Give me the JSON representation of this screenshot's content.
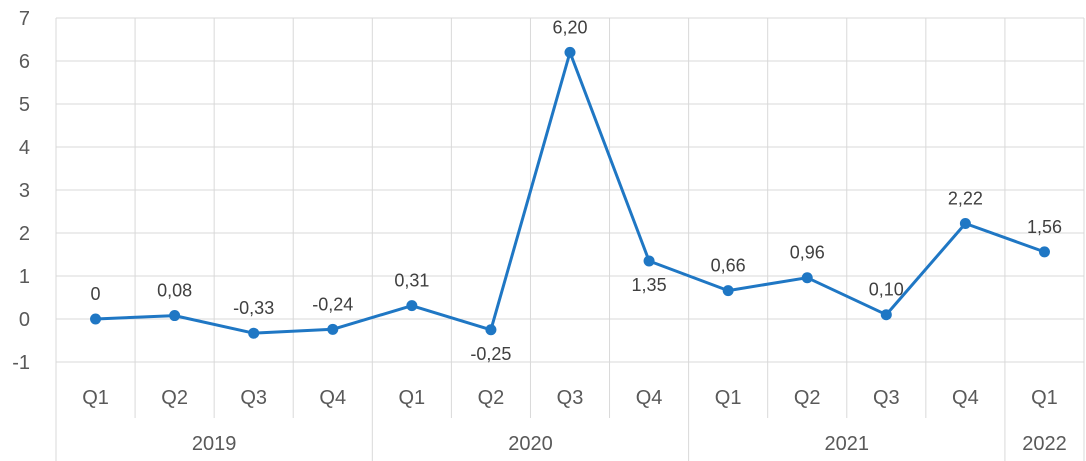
{
  "chart_data": {
    "type": "line",
    "title": "",
    "xlabel": "",
    "ylabel": "",
    "ylim": [
      -1,
      7
    ],
    "yticks": [
      -1,
      0,
      1,
      2,
      3,
      4,
      5,
      6,
      7
    ],
    "grid": true,
    "categories": [
      "Q1",
      "Q2",
      "Q3",
      "Q4",
      "Q1",
      "Q2",
      "Q3",
      "Q4",
      "Q1",
      "Q2",
      "Q3",
      "Q4",
      "Q1"
    ],
    "groups": [
      {
        "label": "2019",
        "count": 4
      },
      {
        "label": "2020",
        "count": 4
      },
      {
        "label": "2021",
        "count": 4
      },
      {
        "label": "2022",
        "count": 1
      }
    ],
    "series": [
      {
        "values": [
          0,
          0.08,
          -0.33,
          -0.24,
          0.31,
          -0.25,
          6.2,
          1.35,
          0.66,
          0.96,
          0.1,
          2.22,
          1.56
        ],
        "labels": [
          "0",
          "0,08",
          "-0,33",
          "-0,24",
          "0,31",
          "-0,25",
          "6,20",
          "1,35",
          "0,66",
          "0,96",
          "0,10",
          "2,22",
          "1,56"
        ],
        "label_positions": [
          "above",
          "above",
          "above",
          "above",
          "above",
          "below",
          "above",
          "below",
          "above",
          "above",
          "above",
          "above",
          "above"
        ],
        "color": "#1f77c4"
      }
    ]
  }
}
